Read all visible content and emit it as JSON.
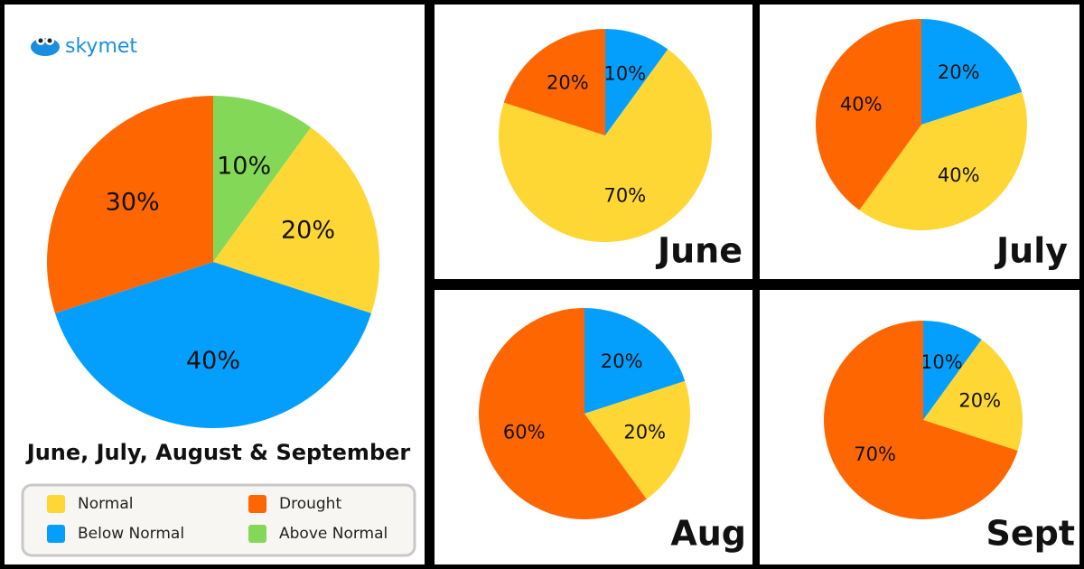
{
  "logo": "skymet",
  "chart_data": [
    {
      "type": "pie",
      "title": "June, July, August & September",
      "categories": [
        "Above Normal",
        "Normal",
        "Below Normal",
        "Drought"
      ],
      "values": [
        10,
        20,
        40,
        30
      ],
      "value_labels": [
        "10%",
        "20%",
        "40%",
        "30%"
      ],
      "colors": [
        "#84d858",
        "#fed734",
        "#049ffc",
        "#fe6602"
      ]
    },
    {
      "type": "pie",
      "title": "June",
      "values": [
        10,
        70,
        20
      ],
      "value_labels": [
        "10%",
        "70%",
        "20%"
      ],
      "colors": [
        "#049ffc",
        "#fed734",
        "#fe6602"
      ]
    },
    {
      "type": "pie",
      "title": "July",
      "values": [
        20,
        40,
        40
      ],
      "value_labels": [
        "20%",
        "40%",
        "40%"
      ],
      "colors": [
        "#049ffc",
        "#fed734",
        "#fe6602"
      ]
    },
    {
      "type": "pie",
      "title": "Aug",
      "values": [
        20,
        20,
        60
      ],
      "value_labels": [
        "20%",
        "20%",
        "60%"
      ],
      "colors": [
        "#049ffc",
        "#fed734",
        "#fe6602"
      ]
    },
    {
      "type": "pie",
      "title": "Sept",
      "values": [
        10,
        20,
        70
      ],
      "value_labels": [
        "10%",
        "20%",
        "70%"
      ],
      "colors": [
        "#049ffc",
        "#fed734",
        "#fe6602"
      ]
    }
  ]
}
